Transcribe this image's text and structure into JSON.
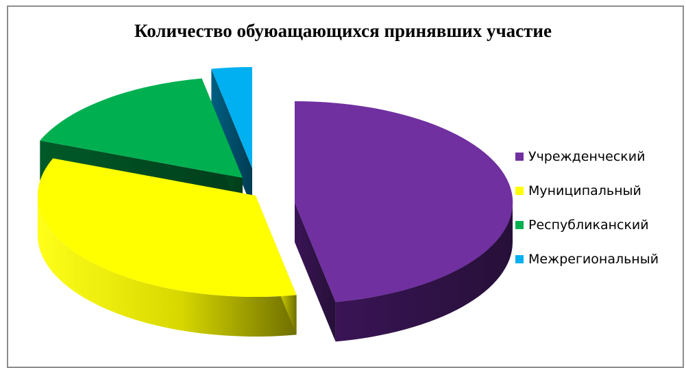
{
  "chart_data": {
    "type": "pie",
    "title": "Количество обуюащающихся принявших участие",
    "categories": [
      "Учрежденческий",
      "Муниципальный",
      "Республиканский",
      "Межрегиональный"
    ],
    "values": [
      47,
      34,
      16,
      3
    ],
    "colors": [
      "#7030a0",
      "#ffff00",
      "#00b050",
      "#00b0f0"
    ],
    "legend_position": "right",
    "three_d": true,
    "exploded": true
  }
}
